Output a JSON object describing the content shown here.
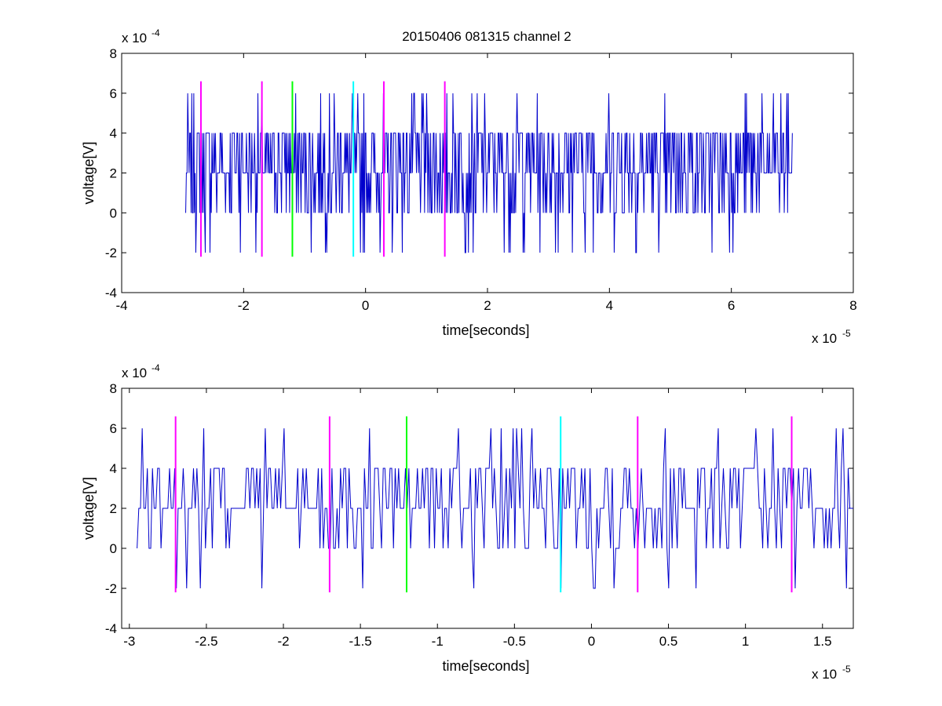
{
  "figure_title": "20150406 081315 channel 2",
  "chart_data": [
    {
      "type": "line",
      "title": "20150406 081315 channel 2",
      "xlabel": "time[seconds]",
      "ylabel": "voltage[V]",
      "x_multiplier": "x 10",
      "x_exponent": "-5",
      "y_multiplier": "x 10",
      "y_exponent": "-4",
      "xlim": [
        -4,
        8
      ],
      "ylim": [
        -4,
        8
      ],
      "xticks": [
        -4,
        -2,
        0,
        2,
        4,
        6,
        8
      ],
      "yticks": [
        -4,
        -2,
        0,
        2,
        4,
        6,
        8
      ],
      "xtick_labels": [
        "-4",
        "-2",
        "0",
        "2",
        "4",
        "6",
        "8"
      ],
      "ytick_labels": [
        "-4",
        "-2",
        "0",
        "2",
        "4",
        "6",
        "8"
      ],
      "grid": false,
      "signal": {
        "color": "#0000cc",
        "x_range": [
          -2.95,
          7.0
        ],
        "levels": [
          -2,
          0,
          2,
          4,
          6
        ],
        "description_levels_prob": [
          0.05,
          0.2,
          0.4,
          0.3,
          0.05
        ]
      },
      "markers": [
        {
          "x": -2.7,
          "y_range": [
            -2.2,
            6.6
          ],
          "color": "#ff00ff"
        },
        {
          "x": -1.7,
          "y_range": [
            -2.2,
            6.6
          ],
          "color": "#ff00ff"
        },
        {
          "x": -1.2,
          "y_range": [
            -2.2,
            6.6
          ],
          "color": "#00ff00"
        },
        {
          "x": -0.2,
          "y_range": [
            -2.2,
            6.6
          ],
          "color": "#00ffff"
        },
        {
          "x": 0.3,
          "y_range": [
            -2.2,
            6.6
          ],
          "color": "#ff00ff"
        },
        {
          "x": 1.3,
          "y_range": [
            -2.2,
            6.6
          ],
          "color": "#ff00ff"
        }
      ]
    },
    {
      "type": "line",
      "title": "",
      "xlabel": "time[seconds]",
      "ylabel": "voltage[V]",
      "x_multiplier": "x 10",
      "x_exponent": "-5",
      "y_multiplier": "x 10",
      "y_exponent": "-4",
      "xlim": [
        -3.05,
        1.7
      ],
      "ylim": [
        -4,
        8
      ],
      "xticks": [
        -3,
        -2.5,
        -2,
        -1.5,
        -1,
        -0.5,
        0,
        0.5,
        1,
        1.5
      ],
      "yticks": [
        -4,
        -2,
        0,
        2,
        4,
        6,
        8
      ],
      "xtick_labels": [
        "-3",
        "-2.5",
        "-2",
        "-1.5",
        "-1",
        "-0.5",
        "0",
        "0.5",
        "1",
        "1.5"
      ],
      "ytick_labels": [
        "-4",
        "-2",
        "0",
        "2",
        "4",
        "6",
        "8"
      ],
      "grid": false,
      "signal": {
        "color": "#0000cc",
        "x_range": [
          -2.95,
          1.7
        ],
        "levels": [
          -2,
          0,
          2,
          4,
          6
        ]
      },
      "markers": [
        {
          "x": -2.7,
          "y_range": [
            -2.2,
            6.6
          ],
          "color": "#ff00ff"
        },
        {
          "x": -1.7,
          "y_range": [
            -2.2,
            6.6
          ],
          "color": "#ff00ff"
        },
        {
          "x": -1.2,
          "y_range": [
            -2.2,
            6.6
          ],
          "color": "#00ff00"
        },
        {
          "x": -0.2,
          "y_range": [
            -2.2,
            6.6
          ],
          "color": "#00ffff"
        },
        {
          "x": 0.3,
          "y_range": [
            -2.2,
            6.6
          ],
          "color": "#ff00ff"
        },
        {
          "x": 1.3,
          "y_range": [
            -2.2,
            6.6
          ],
          "color": "#ff00ff"
        }
      ]
    }
  ]
}
